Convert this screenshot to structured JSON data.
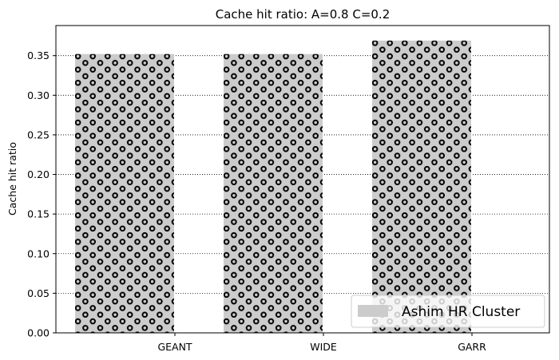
{
  "chart_data": {
    "type": "bar",
    "title": "Cache hit ratio: A=0.8 C=0.2",
    "xlabel": "",
    "ylabel": "Cache hit ratio",
    "categories": [
      "GEANT",
      "WIDE",
      "GARR"
    ],
    "series": [
      {
        "name": "Ashim HR Cluster",
        "values": [
          0.352,
          0.352,
          0.369
        ],
        "color": "#cccccc",
        "hatch": "small-circles"
      }
    ],
    "ylim": [
      0,
      0.388
    ],
    "yticks": [
      0.0,
      0.05,
      0.1,
      0.15,
      0.2,
      0.25,
      0.3,
      0.35
    ],
    "ytick_labels": [
      "0.00",
      "0.05",
      "0.10",
      "0.15",
      "0.20",
      "0.25",
      "0.30",
      "0.35"
    ],
    "grid": "y-dotted",
    "legend_position": "lower-right"
  }
}
